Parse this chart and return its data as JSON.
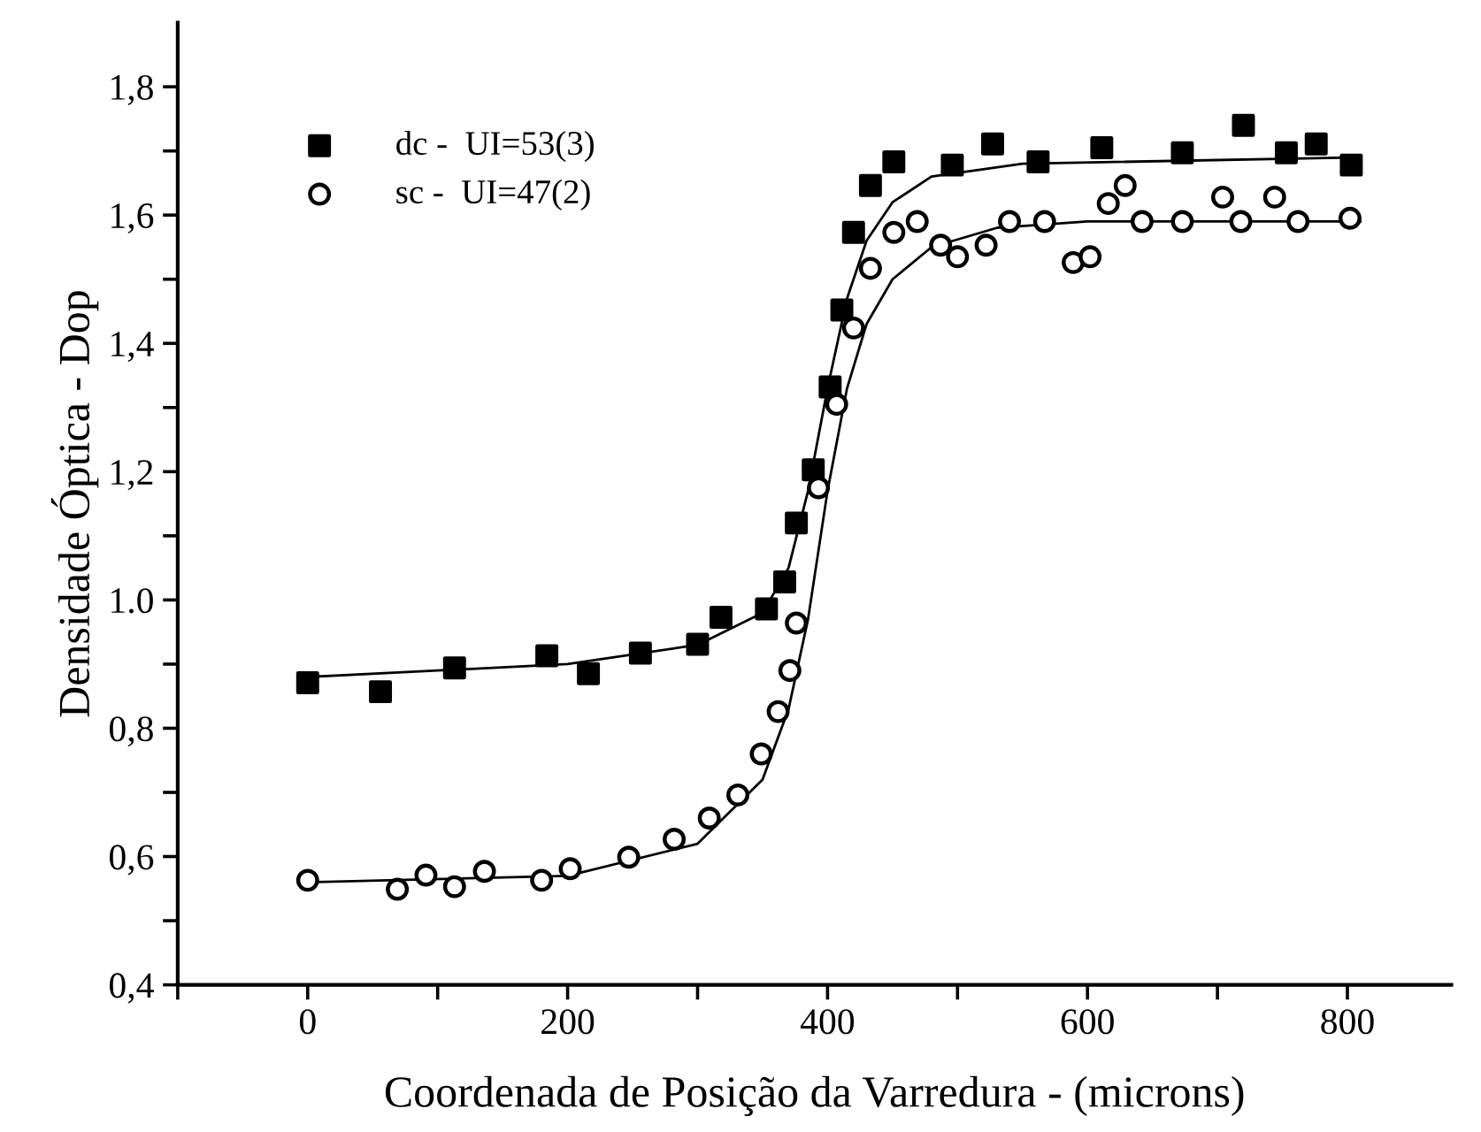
{
  "chart_data": {
    "type": "scatter",
    "xlabel": "Coordenada de Posição da Varredura - (microns)",
    "ylabel": "Densidade Óptica - Dop",
    "xlim": [
      -100,
      880
    ],
    "ylim": [
      0.4,
      1.9
    ],
    "xticks": [
      {
        "value": -100,
        "label": null
      },
      0,
      {
        "value": 100,
        "label": null
      },
      200,
      {
        "value": 300,
        "label": null
      },
      400,
      {
        "value": 500,
        "label": null
      },
      600,
      {
        "value": 700,
        "label": null
      },
      800
    ],
    "yticks": [
      {
        "value": 0.4,
        "label": "0,4"
      },
      {
        "value": 0.5,
        "label": null
      },
      {
        "value": 0.6,
        "label": "0,6"
      },
      {
        "value": 0.7,
        "label": null
      },
      {
        "value": 0.8,
        "label": "0,8"
      },
      {
        "value": 0.9,
        "label": null
      },
      {
        "value": 1.0,
        "label": "1.0"
      },
      {
        "value": 1.1,
        "label": null
      },
      {
        "value": 1.2,
        "label": "1,2"
      },
      {
        "value": 1.3,
        "label": null
      },
      {
        "value": 1.4,
        "label": "1,4"
      },
      {
        "value": 1.5,
        "label": null
      },
      {
        "value": 1.6,
        "label": "1,6"
      },
      {
        "value": 1.7,
        "label": null
      },
      {
        "value": 1.8,
        "label": "1,8"
      }
    ],
    "grid": false,
    "legend": "top left",
    "series": [
      {
        "name": "dc -  UI=53(3)",
        "color": "#000000",
        "marker": "square",
        "x": [
          0,
          56,
          113,
          184,
          216,
          256,
          300,
          318,
          353,
          367,
          376,
          389,
          402,
          411,
          420,
          433,
          451,
          496,
          527,
          562,
          611,
          673,
          720,
          753,
          776,
          803
        ],
        "values": [
          0.871,
          0.857,
          0.894,
          0.913,
          0.885,
          0.917,
          0.931,
          0.973,
          0.986,
          1.028,
          1.12,
          1.203,
          1.332,
          1.452,
          1.573,
          1.646,
          1.683,
          1.678,
          1.711,
          1.683,
          1.705,
          1.697,
          1.74,
          1.697,
          1.711,
          1.678
        ]
      },
      {
        "name": "sc -  UI=47(2)",
        "color": "#000000",
        "marker": "circle",
        "x": [
          0,
          69,
          91,
          113,
          136,
          180,
          202,
          247,
          282,
          309,
          331,
          349,
          362,
          371,
          376,
          393,
          407,
          420,
          433,
          451,
          469,
          487,
          500,
          522,
          540,
          567,
          589,
          602,
          616,
          629,
          642,
          673,
          704,
          718,
          744,
          762,
          802
        ],
        "values": [
          0.563,
          0.549,
          0.571,
          0.553,
          0.577,
          0.563,
          0.581,
          0.599,
          0.627,
          0.66,
          0.696,
          0.76,
          0.826,
          0.89,
          0.964,
          1.175,
          1.305,
          1.424,
          1.517,
          1.573,
          1.59,
          1.553,
          1.535,
          1.553,
          1.59,
          1.59,
          1.526,
          1.535,
          1.618,
          1.646,
          1.59,
          1.59,
          1.628,
          1.59,
          1.628,
          1.59,
          1.595
        ]
      },
      {
        "type": "line",
        "color": "#000000",
        "marker": "none",
        "x": [
          0,
          200,
          300,
          350,
          370,
          385,
          400,
          415,
          430,
          450,
          480,
          550,
          810
        ],
        "values": [
          0.88,
          0.9,
          0.93,
          0.98,
          1.05,
          1.17,
          1.33,
          1.47,
          1.56,
          1.62,
          1.66,
          1.68,
          1.69
        ]
      },
      {
        "type": "line",
        "color": "#000000",
        "marker": "none",
        "x": [
          0,
          200,
          300,
          350,
          370,
          385,
          400,
          415,
          430,
          450,
          480,
          530,
          600,
          810
        ],
        "values": [
          0.56,
          0.57,
          0.62,
          0.72,
          0.83,
          0.97,
          1.17,
          1.33,
          1.43,
          1.5,
          1.55,
          1.58,
          1.59,
          1.59
        ]
      }
    ]
  }
}
